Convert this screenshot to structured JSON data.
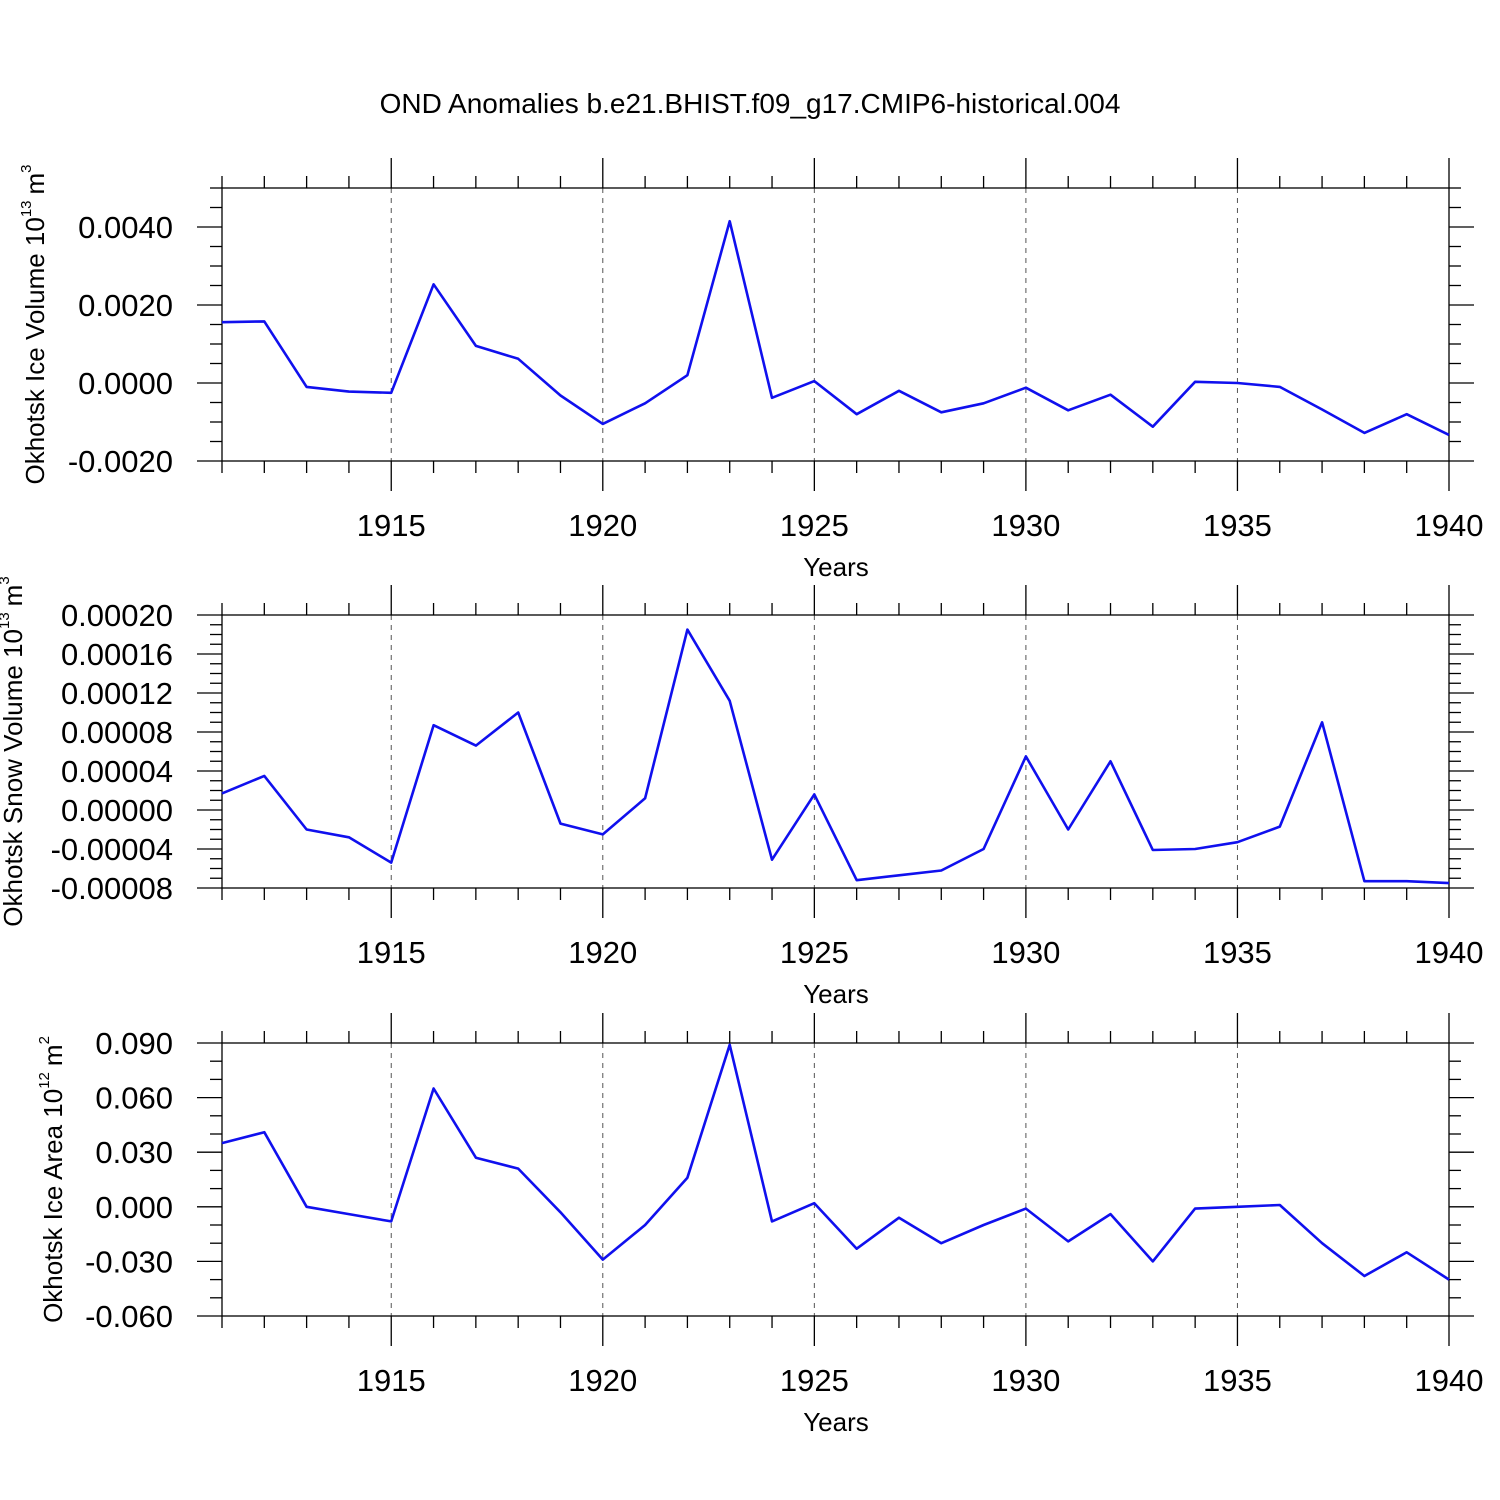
{
  "chart_data": {
    "title": "OND Anomalies b.e21.BHIST.f09_g17.CMIP6-historical.004",
    "type": "line",
    "series_color": "#1010ee",
    "panels": [
      {
        "type": "line",
        "ylabel_text": "Okhotsk Ice Volume 10",
        "ylabel_exp": "13",
        "ylabel_unit": "m",
        "ylabel_unit_exp": "3",
        "xlabel": "Years",
        "xlim": [
          1911,
          1940
        ],
        "ylim": [
          -0.002,
          0.005
        ],
        "xticks": [
          1915,
          1920,
          1925,
          1930,
          1935,
          1940
        ],
        "xtick_labels": [
          "1915",
          "1920",
          "1925",
          "1930",
          "1935",
          "1940"
        ],
        "yticks": [
          -0.002,
          0.0,
          0.002,
          0.004
        ],
        "ytick_labels": [
          "-0.0020",
          "0.0000",
          "0.0020",
          "0.0040"
        ],
        "yminor_step": 0.0005,
        "x": [
          1911,
          1912,
          1913,
          1914,
          1915,
          1916,
          1917,
          1918,
          1919,
          1920,
          1921,
          1922,
          1923,
          1924,
          1925,
          1926,
          1927,
          1928,
          1929,
          1930,
          1931,
          1932,
          1933,
          1934,
          1935,
          1936,
          1937,
          1938,
          1939,
          1940
        ],
        "values": [
          0.00156,
          0.00158,
          -0.0001,
          -0.00022,
          -0.00025,
          0.00253,
          0.00095,
          0.00062,
          -0.00032,
          -0.00105,
          -0.00052,
          0.0002,
          0.00415,
          -0.00038,
          5e-05,
          -0.0008,
          -0.0002,
          -0.00075,
          -0.00052,
          -0.00012,
          -0.0007,
          -0.0003,
          -0.00112,
          3e-05,
          0.0,
          -0.0001,
          -0.00068,
          -0.00128,
          -0.0008,
          -0.00133
        ]
      },
      {
        "type": "line",
        "ylabel_text": "Okhotsk Snow Volume 10",
        "ylabel_exp": "13",
        "ylabel_unit": "m",
        "ylabel_unit_exp": "3",
        "xlabel": "Years",
        "xlim": [
          1911,
          1940
        ],
        "ylim": [
          -8e-05,
          0.0002
        ],
        "xticks": [
          1915,
          1920,
          1925,
          1930,
          1935,
          1940
        ],
        "xtick_labels": [
          "1915",
          "1920",
          "1925",
          "1930",
          "1935",
          "1940"
        ],
        "yticks": [
          -8e-05,
          -4e-05,
          0.0,
          4e-05,
          8e-05,
          0.00012,
          0.00016,
          0.0002
        ],
        "ytick_labels": [
          "-0.00008",
          "-0.00004",
          "0.00000",
          "0.00004",
          "0.00008",
          "0.00012",
          "0.00016",
          "0.00020"
        ],
        "yminor_step": 1e-05,
        "x": [
          1911,
          1912,
          1913,
          1914,
          1915,
          1916,
          1917,
          1918,
          1919,
          1920,
          1921,
          1922,
          1923,
          1924,
          1925,
          1926,
          1927,
          1928,
          1929,
          1930,
          1931,
          1932,
          1933,
          1934,
          1935,
          1936,
          1937,
          1938,
          1939,
          1940
        ],
        "values": [
          1.7e-05,
          3.5e-05,
          -2e-05,
          -2.8e-05,
          -5.4e-05,
          8.7e-05,
          6.6e-05,
          0.0001,
          -1.4e-05,
          -2.5e-05,
          1.2e-05,
          0.000185,
          0.000112,
          -5.1e-05,
          1.6e-05,
          -7.2e-05,
          -6.7e-05,
          -6.2e-05,
          -4e-05,
          5.5e-05,
          -2e-05,
          5e-05,
          -4.1e-05,
          -4e-05,
          -3.3e-05,
          -1.7e-05,
          9e-05,
          -7.3e-05,
          -7.3e-05,
          -7.5e-05
        ]
      },
      {
        "type": "line",
        "ylabel_text": "Okhotsk Ice Area 10",
        "ylabel_exp": "12",
        "ylabel_unit": "m",
        "ylabel_unit_exp": "2",
        "xlabel": "Years",
        "xlim": [
          1911,
          1940
        ],
        "ylim": [
          -0.06,
          0.09
        ],
        "xticks": [
          1915,
          1920,
          1925,
          1930,
          1935,
          1940
        ],
        "xtick_labels": [
          "1915",
          "1920",
          "1925",
          "1930",
          "1935",
          "1940"
        ],
        "yticks": [
          -0.06,
          -0.03,
          0.0,
          0.03,
          0.06,
          0.09
        ],
        "ytick_labels": [
          "-0.060",
          "-0.030",
          "0.000",
          "0.030",
          "0.060",
          "0.090"
        ],
        "yminor_step": 0.01,
        "x": [
          1911,
          1912,
          1913,
          1914,
          1915,
          1916,
          1917,
          1918,
          1919,
          1920,
          1921,
          1922,
          1923,
          1924,
          1925,
          1926,
          1927,
          1928,
          1929,
          1930,
          1931,
          1932,
          1933,
          1934,
          1935,
          1936,
          1937,
          1938,
          1939,
          1940
        ],
        "values": [
          0.035,
          0.041,
          0.0,
          -0.004,
          -0.008,
          0.065,
          0.027,
          0.021,
          -0.003,
          -0.029,
          -0.01,
          0.016,
          0.089,
          -0.008,
          0.002,
          -0.023,
          -0.006,
          -0.02,
          -0.01,
          -0.001,
          -0.019,
          -0.004,
          -0.03,
          -0.001,
          0.0,
          0.001,
          -0.02,
          -0.038,
          -0.025,
          -0.04
        ]
      }
    ]
  }
}
